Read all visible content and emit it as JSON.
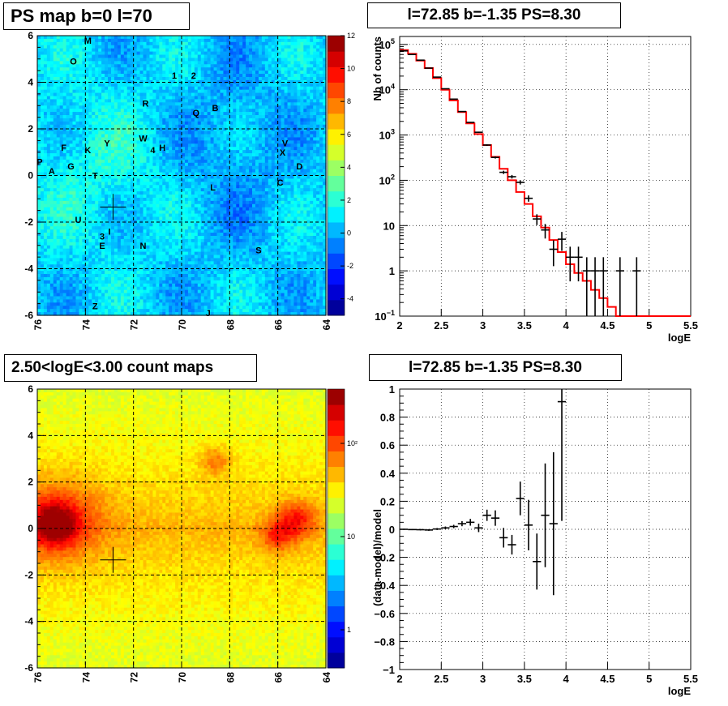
{
  "chart_data": [
    {
      "type": "heatmap",
      "title": "PS map b=0 l=70",
      "xlim": [
        76,
        64
      ],
      "ylim": [
        -6,
        6
      ],
      "x_ticks": [
        "76",
        "74",
        "72",
        "70",
        "68",
        "66",
        "64"
      ],
      "y_ticks": [
        "-6",
        "-4",
        "-2",
        "0",
        "2",
        "4",
        "6"
      ],
      "colorbar_ticks": [
        "-4",
        "-2",
        "0",
        "2",
        "4",
        "6",
        "8",
        "10",
        "12"
      ],
      "colorbar_range": [
        -5,
        12
      ],
      "grid": true,
      "marker": {
        "l": 72.85,
        "b": -1.35
      },
      "sources": [
        {
          "label": "M",
          "l": 73.9,
          "b": 5.8
        },
        {
          "label": "O",
          "l": 74.5,
          "b": 4.9
        },
        {
          "label": "1",
          "l": 70.3,
          "b": 4.3
        },
        {
          "label": "2",
          "l": 69.5,
          "b": 4.3
        },
        {
          "label": "R",
          "l": 71.5,
          "b": 3.1
        },
        {
          "label": "Q",
          "l": 69.4,
          "b": 2.7
        },
        {
          "label": "B",
          "l": 68.6,
          "b": 2.9
        },
        {
          "label": "V",
          "l": 65.7,
          "b": 1.4
        },
        {
          "label": "X",
          "l": 65.8,
          "b": 1.0
        },
        {
          "label": "D",
          "l": 65.1,
          "b": 0.4
        },
        {
          "label": "C",
          "l": 65.9,
          "b": -0.3
        },
        {
          "label": "L",
          "l": 68.7,
          "b": -0.5
        },
        {
          "label": "W",
          "l": 71.6,
          "b": 1.6
        },
        {
          "label": "4",
          "l": 71.2,
          "b": 1.1
        },
        {
          "label": "H",
          "l": 70.8,
          "b": 1.2
        },
        {
          "label": "Y",
          "l": 73.1,
          "b": 1.4
        },
        {
          "label": "F",
          "l": 74.9,
          "b": 1.2
        },
        {
          "label": "K",
          "l": 73.9,
          "b": 1.1
        },
        {
          "label": "P",
          "l": 75.9,
          "b": 0.6
        },
        {
          "label": "A",
          "l": 75.4,
          "b": 0.2
        },
        {
          "label": "G",
          "l": 74.6,
          "b": 0.4
        },
        {
          "label": "T",
          "l": 73.6,
          "b": 0.0
        },
        {
          "label": "U",
          "l": 74.3,
          "b": -1.9
        },
        {
          "label": "3",
          "l": 73.3,
          "b": -2.6
        },
        {
          "label": "I",
          "l": 73.0,
          "b": -2.4
        },
        {
          "label": "E",
          "l": 73.3,
          "b": -3.0
        },
        {
          "label": "N",
          "l": 71.6,
          "b": -3.0
        },
        {
          "label": "S",
          "l": 66.8,
          "b": -3.2
        },
        {
          "label": "Z",
          "l": 73.6,
          "b": -5.6
        },
        {
          "label": "J",
          "l": 68.9,
          "b": -5.9
        }
      ]
    },
    {
      "type": "line",
      "title": "l=72.85 b=-1.35 PS=8.30",
      "xlabel": "logE",
      "ylabel": "Nb of counts",
      "log_y": true,
      "xlim": [
        2,
        5.5
      ],
      "ylim": [
        0.1,
        150000
      ],
      "x_ticks": [
        "2",
        "2.5",
        "3",
        "3.5",
        "4",
        "4.5",
        "5",
        "5.5"
      ],
      "y_ticks": [
        {
          "v": 0.1,
          "base": "10",
          "exp": "−1"
        },
        {
          "v": 1,
          "base": "1",
          "exp": ""
        },
        {
          "v": 10,
          "base": "10",
          "exp": ""
        },
        {
          "v": 100,
          "base": "10",
          "exp": "2"
        },
        {
          "v": 1000,
          "base": "10",
          "exp": "3"
        },
        {
          "v": 10000,
          "base": "10",
          "exp": "4"
        },
        {
          "v": 100000,
          "base": "10",
          "exp": "5"
        }
      ],
      "grid": true,
      "data": [
        {
          "x": 2.05,
          "y": 72000
        },
        {
          "x": 2.15,
          "y": 60000
        },
        {
          "x": 2.25,
          "y": 45000
        },
        {
          "x": 2.35,
          "y": 30000
        },
        {
          "x": 2.45,
          "y": 19000
        },
        {
          "x": 2.55,
          "y": 10500
        },
        {
          "x": 2.65,
          "y": 6200
        },
        {
          "x": 2.75,
          "y": 3300
        },
        {
          "x": 2.85,
          "y": 1900
        },
        {
          "x": 2.95,
          "y": 1150
        },
        {
          "x": 3.05,
          "y": 600
        },
        {
          "x": 3.15,
          "y": 320
        },
        {
          "x": 3.25,
          "y": 150
        },
        {
          "x": 3.35,
          "y": 120
        },
        {
          "x": 3.45,
          "y": 90
        },
        {
          "x": 3.55,
          "y": 40
        },
        {
          "x": 3.65,
          "y": 14
        },
        {
          "x": 3.75,
          "y": 8
        },
        {
          "x": 3.85,
          "y": 3
        },
        {
          "x": 3.95,
          "y": 5
        },
        {
          "x": 4.05,
          "y": 2
        },
        {
          "x": 4.15,
          "y": 2
        },
        {
          "x": 4.25,
          "y": 1
        },
        {
          "x": 4.35,
          "y": 1
        },
        {
          "x": 4.45,
          "y": 1
        },
        {
          "x": 4.65,
          "y": 1
        },
        {
          "x": 4.85,
          "y": 1
        }
      ],
      "model": [
        75000,
        62000,
        44000,
        30000,
        18000,
        10000,
        5800,
        3200,
        1800,
        1050,
        600,
        330,
        180,
        100,
        55,
        30,
        16,
        9,
        4.8,
        2.6,
        1.4,
        0.9,
        0.6,
        0.38,
        0.25,
        0.16,
        0.1,
        0.1,
        0.1,
        0.1,
        0.1,
        0.1,
        0.1,
        0.1,
        0.1
      ],
      "model_color": "#ff0000"
    },
    {
      "type": "heatmap",
      "title": "2.50<logE<3.00 count maps",
      "xlim": [
        76,
        64
      ],
      "ylim": [
        -6,
        6
      ],
      "x_ticks": [
        "76",
        "74",
        "72",
        "70",
        "68",
        "66",
        "64"
      ],
      "y_ticks": [
        "-6",
        "-4",
        "-2",
        "0",
        "2",
        "4",
        "6"
      ],
      "colorbar_ticks": [
        "1",
        "10",
        "10²"
      ],
      "log_color": true,
      "grid": true,
      "marker": {
        "l": 72.85,
        "b": -1.35
      }
    },
    {
      "type": "scatter",
      "title": "l=72.85 b=-1.35 PS=8.30",
      "xlabel": "logE",
      "ylabel": "(data-model)/model",
      "xlim": [
        2,
        5.5
      ],
      "ylim": [
        -1,
        1
      ],
      "x_ticks": [
        "2",
        "2.5",
        "3",
        "3.5",
        "4",
        "4.5",
        "5",
        "5.5"
      ],
      "y_ticks": [
        "−1",
        "−0.8",
        "−0.6",
        "−0.4",
        "−0.2",
        "0",
        "0.2",
        "0.4",
        "0.6",
        "0.8",
        "1"
      ],
      "grid": true,
      "data": [
        {
          "x": 2.05,
          "y": 0.0,
          "err": 0.004
        },
        {
          "x": 2.15,
          "y": -0.002,
          "err": 0.004
        },
        {
          "x": 2.25,
          "y": -0.003,
          "err": 0.005
        },
        {
          "x": 2.35,
          "y": -0.005,
          "err": 0.006
        },
        {
          "x": 2.45,
          "y": 0.002,
          "err": 0.007
        },
        {
          "x": 2.55,
          "y": 0.01,
          "err": 0.01
        },
        {
          "x": 2.65,
          "y": 0.02,
          "err": 0.012
        },
        {
          "x": 2.75,
          "y": 0.04,
          "err": 0.018
        },
        {
          "x": 2.85,
          "y": 0.05,
          "err": 0.024
        },
        {
          "x": 2.95,
          "y": 0.01,
          "err": 0.03
        },
        {
          "x": 3.05,
          "y": 0.1,
          "err": 0.04
        },
        {
          "x": 3.15,
          "y": 0.08,
          "err": 0.055
        },
        {
          "x": 3.25,
          "y": -0.06,
          "err": 0.07
        },
        {
          "x": 3.35,
          "y": -0.11,
          "err": 0.07
        },
        {
          "x": 3.45,
          "y": 0.22,
          "err": 0.12
        },
        {
          "x": 3.55,
          "y": 0.03,
          "err": 0.18
        },
        {
          "x": 3.65,
          "y": -0.23,
          "err": 0.2
        },
        {
          "x": 3.75,
          "y": 0.1,
          "err": 0.37
        },
        {
          "x": 3.85,
          "y": 0.04,
          "err": 0.51
        },
        {
          "x": 3.95,
          "y": 0.91,
          "err": 0.85
        }
      ]
    }
  ]
}
